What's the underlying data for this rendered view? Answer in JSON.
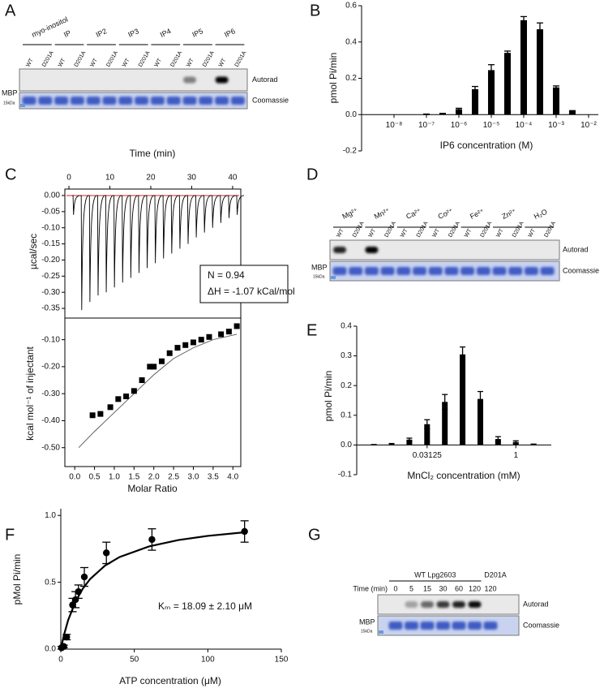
{
  "panel_labels": [
    "A",
    "B",
    "C",
    "D",
    "E",
    "F",
    "G"
  ],
  "chart_data": [
    {
      "type": "bar",
      "ylabel": "pmol Pi/min",
      "xlabel": "IP6 concentration (M)",
      "xscale": "log",
      "color": "#000000",
      "x": [
        1e-07,
        3.16e-07,
        1e-06,
        3.16e-06,
        1e-05,
        3.16e-05,
        0.0001,
        0.000316,
        0.001,
        0.00316
      ],
      "values": [
        0.002,
        0.005,
        0.03,
        0.14,
        0.245,
        0.34,
        0.52,
        0.47,
        0.15,
        0.02
      ],
      "errors": [
        0.001,
        0.002,
        0.005,
        0.015,
        0.03,
        0.01,
        0.02,
        0.035,
        0.008,
        0.002
      ],
      "xlim": [
        1e-09,
        0.02
      ],
      "ylim": [
        -0.2,
        0.6
      ],
      "xticks": [
        {
          "value": 1e-08,
          "label": "10⁻⁸"
        },
        {
          "value": 1e-07,
          "label": "10⁻⁷"
        },
        {
          "value": 1e-06,
          "label": "10⁻⁶"
        },
        {
          "value": 1e-05,
          "label": "10⁻⁵"
        },
        {
          "value": 0.0001,
          "label": "10⁻⁴"
        },
        {
          "value": 0.001,
          "label": "10⁻³"
        },
        {
          "value": 0.01,
          "label": "10⁻²"
        }
      ],
      "yticks": [
        -0.2,
        {
          "value": 0,
          "label": "0.0"
        },
        0.2,
        0.4,
        0.6
      ]
    },
    {
      "type": "trace",
      "xlabel": "Time (min)",
      "ylabel": "µcal/sec",
      "color": "#000000",
      "x": [
        1,
        3,
        5,
        7,
        9,
        11,
        13,
        15,
        17,
        19,
        21,
        23,
        25,
        27,
        29,
        31,
        33,
        35,
        37,
        39,
        41
      ],
      "values": [
        -0.06,
        -0.355,
        -0.33,
        -0.31,
        -0.3,
        -0.285,
        -0.27,
        -0.255,
        -0.24,
        -0.225,
        -0.21,
        -0.195,
        -0.18,
        -0.165,
        -0.15,
        -0.13,
        -0.115,
        -0.1,
        -0.085,
        -0.07,
        -0.06
      ],
      "annotations": [
        "N = 0.94",
        "ΔH = -1.07 kCal/mol"
      ],
      "xlim": [
        -1,
        42
      ],
      "ylim": [
        -0.38,
        0.02
      ],
      "xticks": [
        0,
        10,
        20,
        30,
        40
      ],
      "yticks": [
        {
          "value": 0,
          "label": "0.00"
        },
        -0.05,
        {
          "value": -0.1,
          "label": "-0.10"
        },
        -0.15,
        {
          "value": -0.2,
          "label": "-0.20"
        },
        -0.25,
        {
          "value": -0.3,
          "label": "-0.30"
        },
        -0.35
      ]
    },
    {
      "type": "scatter",
      "marker": "square",
      "xlabel": "Molar Ratio",
      "ylabel": "kcal mol⁻¹ of injectant",
      "color": "#000000",
      "x": [
        0.45,
        0.65,
        0.9,
        1.1,
        1.3,
        1.5,
        1.7,
        1.9,
        2.0,
        2.2,
        2.4,
        2.6,
        2.8,
        3.0,
        3.2,
        3.4,
        3.7,
        3.9,
        4.1
      ],
      "values": [
        -0.38,
        -0.375,
        -0.35,
        -0.32,
        -0.31,
        -0.29,
        -0.25,
        -0.2,
        -0.2,
        -0.18,
        -0.15,
        -0.13,
        -0.12,
        -0.11,
        -0.1,
        -0.09,
        -0.08,
        -0.07,
        -0.05
      ],
      "fit": {
        "x": [
          0.1,
          0.5,
          1.0,
          1.5,
          2.0,
          2.5,
          3.0,
          3.5,
          4.1
        ],
        "values": [
          -0.5,
          -0.44,
          -0.37,
          -0.3,
          -0.23,
          -0.17,
          -0.13,
          -0.1,
          -0.08
        ]
      },
      "xlim": [
        -0.25,
        4.2
      ],
      "ylim": [
        -0.57,
        -0.02
      ],
      "xticks": [
        {
          "value": 0,
          "label": "0.0"
        },
        0.5,
        {
          "value": 1,
          "label": "1.0"
        },
        1.5,
        {
          "value": 2,
          "label": "2.0"
        },
        2.5,
        {
          "value": 3,
          "label": "3.0"
        },
        3.5,
        {
          "value": 4,
          "label": "4.0"
        }
      ],
      "yticks": [
        {
          "value": -0.1,
          "label": "-0.10"
        },
        {
          "value": -0.2,
          "label": "-0.20"
        },
        {
          "value": -0.3,
          "label": "-0.30"
        },
        {
          "value": -0.4,
          "label": "-0.40"
        },
        {
          "value": -0.5,
          "label": "-0.50"
        }
      ]
    },
    {
      "type": "bar",
      "ylabel": "pmol Pi/min",
      "xlabel": "MnCl₂ concentration (mM)",
      "xscale": "log",
      "color": "#000000",
      "x": [
        0.00390625,
        0.0078125,
        0.015625,
        0.03125,
        0.0625,
        0.125,
        0.25,
        0.5,
        1,
        2
      ],
      "values": [
        0.001,
        0.003,
        0.018,
        0.07,
        0.145,
        0.305,
        0.155,
        0.02,
        0.01,
        0.002
      ],
      "errors": [
        0.0005,
        0.002,
        0.005,
        0.015,
        0.025,
        0.025,
        0.025,
        0.008,
        0.004,
        0.001
      ],
      "xlim": [
        0.002,
        4
      ],
      "ylim": [
        -0.1,
        0.4
      ],
      "xticks": [
        0.03125,
        1
      ],
      "yticks": [
        -0.1,
        {
          "value": 0,
          "label": "0.0"
        },
        0.1,
        0.2,
        0.3,
        0.4
      ]
    },
    {
      "type": "scatter",
      "marker": "circle",
      "xlabel": "ATP concentration (μM)",
      "ylabel": "pMol Pi/min",
      "color": "#000000",
      "x": [
        0.5,
        2,
        4,
        8,
        10,
        12,
        16,
        31,
        62,
        125
      ],
      "values": [
        0.01,
        0.02,
        0.09,
        0.33,
        0.37,
        0.43,
        0.54,
        0.72,
        0.82,
        0.88
      ],
      "errors": [
        0.01,
        0.01,
        0.02,
        0.05,
        0.06,
        0.05,
        0.07,
        0.08,
        0.08,
        0.08
      ],
      "fit": {
        "x": [
          0,
          2,
          5,
          10,
          15,
          20,
          30,
          40,
          60,
          80,
          100,
          125
        ],
        "values": [
          0,
          0.1,
          0.217,
          0.356,
          0.453,
          0.525,
          0.624,
          0.689,
          0.768,
          0.816,
          0.847,
          0.874
        ]
      },
      "annotations": [
        "Kₘ = 18.09 ± 2.10 μM"
      ],
      "xlim": [
        0,
        150
      ],
      "ylim": [
        0,
        1.05
      ],
      "xticks": [
        0,
        50,
        100,
        150
      ],
      "yticks": [
        {
          "value": 0,
          "label": "0.0"
        },
        0.5,
        {
          "value": 1,
          "label": "1.0"
        }
      ]
    }
  ],
  "gels": [
    {
      "groups": [
        {
          "label": "myo-inositol",
          "lanes": [
            "WT",
            "D201A"
          ]
        },
        {
          "label": "IP",
          "lanes": [
            "WT",
            "D201A"
          ]
        },
        {
          "label": "IP2",
          "lanes": [
            "WT",
            "D201A"
          ]
        },
        {
          "label": "IP3",
          "lanes": [
            "WT",
            "D201A"
          ]
        },
        {
          "label": "IP4",
          "lanes": [
            "WT",
            "D201A"
          ]
        },
        {
          "label": "IP5",
          "lanes": [
            "WT",
            "D201A"
          ]
        },
        {
          "label": "IP6",
          "lanes": [
            "WT",
            "D201A"
          ]
        }
      ],
      "autorad": [
        0,
        0,
        0,
        0,
        0,
        0,
        0,
        0,
        0,
        0,
        0.45,
        0,
        1,
        0
      ],
      "rows": [
        "Autorad",
        "Coomassie"
      ],
      "marker": "MBP",
      "marker_size": "15kDa"
    },
    {
      "groups": [
        {
          "label": "Mg²⁺",
          "lanes": [
            "WT",
            "D201A"
          ]
        },
        {
          "label": "Mn²⁺",
          "lanes": [
            "WT",
            "D201A"
          ]
        },
        {
          "label": "Ca²⁺",
          "lanes": [
            "WT",
            "D201A"
          ]
        },
        {
          "label": "Co²⁺",
          "lanes": [
            "WT",
            "D201A"
          ]
        },
        {
          "label": "Fe²⁺",
          "lanes": [
            "WT",
            "D201A"
          ]
        },
        {
          "label": "Zn²⁺",
          "lanes": [
            "WT",
            "D201A"
          ]
        },
        {
          "label": "H₂O",
          "lanes": [
            "WT",
            "D201A"
          ]
        }
      ],
      "autorad": [
        0.85,
        0,
        1,
        0,
        0,
        0,
        0,
        0,
        0,
        0,
        0,
        0,
        0,
        0
      ],
      "rows": [
        "Autorad",
        "Coomassie"
      ],
      "marker": "MBP",
      "marker_size": "15kDa"
    },
    {
      "groups": [
        {
          "label": "WT Lpg2603",
          "lanes": [
            0,
            5,
            15,
            30,
            60,
            120
          ]
        },
        {
          "label": "D201A",
          "lanes": [
            120
          ]
        }
      ],
      "lane_title": "Time (min)",
      "autorad": [
        0,
        0.3,
        0.55,
        0.75,
        0.85,
        0.95,
        0
      ],
      "rows": [
        "Autorad",
        "Coomassie"
      ],
      "marker": "MBP",
      "marker_size": "15kDa"
    }
  ]
}
